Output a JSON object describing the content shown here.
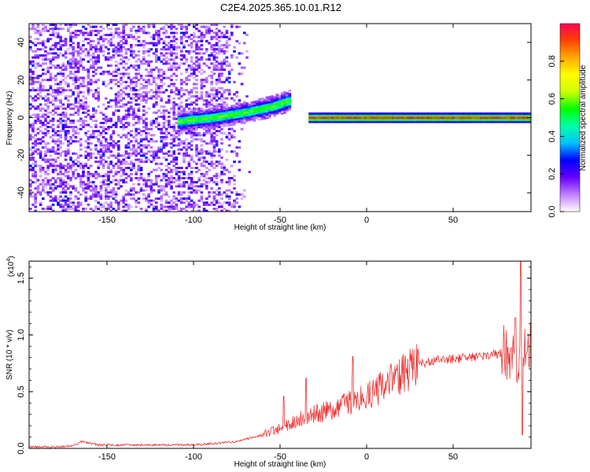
{
  "title": "C2E4.2025.365.10.01.R12",
  "chart_data": [
    {
      "type": "heatmap",
      "xlabel": "Height of straight line (km)",
      "ylabel": "Frequency (Hz)",
      "xlim": [
        -195,
        95
      ],
      "ylim": [
        -50,
        50
      ],
      "xticks": [
        -150,
        -100,
        -50,
        0,
        50
      ],
      "yticks": [
        -40,
        -20,
        0,
        20,
        40
      ],
      "grid": false,
      "colorbar": {
        "label": "Normalized spectral amplitude",
        "range": [
          0,
          1
        ],
        "ticks": [
          0.0,
          0.2,
          0.4,
          0.6,
          0.8
        ],
        "colormap": [
          "#ffffff",
          "#c080ff",
          "#6600ff",
          "#0000ff",
          "#00c0ff",
          "#00ffaa",
          "#00ff00",
          "#ccff00",
          "#ffff00",
          "#ffaa00",
          "#ff4400",
          "#ff0055"
        ]
      },
      "features": [
        {
          "name": "scattered broadband returns",
          "x_range": [
            -195,
            -68
          ],
          "y_range": [
            -50,
            50
          ],
          "amplitude": [
            0.05,
            0.3
          ]
        },
        {
          "name": "rising drift track",
          "x": [
            -110,
            -90,
            -70,
            -55,
            -45
          ],
          "y": [
            -2,
            0,
            3,
            6,
            9
          ],
          "amplitude": [
            0.3,
            0.5
          ]
        },
        {
          "name": "steady band at 0 Hz",
          "x_range": [
            -35,
            95
          ],
          "y": 0,
          "amplitude": [
            0.8,
            1.0
          ]
        }
      ]
    },
    {
      "type": "line",
      "xlabel": "Height of straight line (km)",
      "ylabel": "SNR (10 * v/v)",
      "y_multiplier": "(x10",
      "y_multiplier_exp": "4",
      "y_multiplier_close": ")",
      "xlim": [
        -195,
        95
      ],
      "ylim": [
        0,
        1.65
      ],
      "xticks": [
        -150,
        -100,
        -50,
        0,
        50
      ],
      "yticks": [
        0.0,
        0.5,
        1.0,
        1.5
      ],
      "yticklabels": [
        "0.0",
        "0.5",
        "1.0",
        "1.5"
      ],
      "grid": false,
      "color": "#ee3333",
      "envelope": {
        "x": [
          -195,
          -170,
          -165,
          -155,
          -100,
          -75,
          -60,
          -50,
          -40,
          -30,
          -20,
          -10,
          0,
          10,
          20,
          30,
          40,
          50,
          60,
          70,
          80,
          85,
          88,
          90,
          92,
          95
        ],
        "y": [
          0.01,
          0.02,
          0.06,
          0.03,
          0.03,
          0.06,
          0.12,
          0.18,
          0.25,
          0.3,
          0.34,
          0.4,
          0.45,
          0.55,
          0.66,
          0.74,
          0.78,
          0.79,
          0.8,
          0.82,
          0.84,
          0.8,
          0.7,
          0.85,
          0.95,
          0.9
        ]
      },
      "spikes": [
        {
          "x": -48,
          "y": 0.46
        },
        {
          "x": -35,
          "y": 0.62
        },
        {
          "x": -8,
          "y": 0.81
        },
        {
          "x": 86,
          "y": 1.15
        },
        {
          "x": 89,
          "y": 1.65
        },
        {
          "x": 90,
          "y": 0.12
        }
      ]
    }
  ]
}
